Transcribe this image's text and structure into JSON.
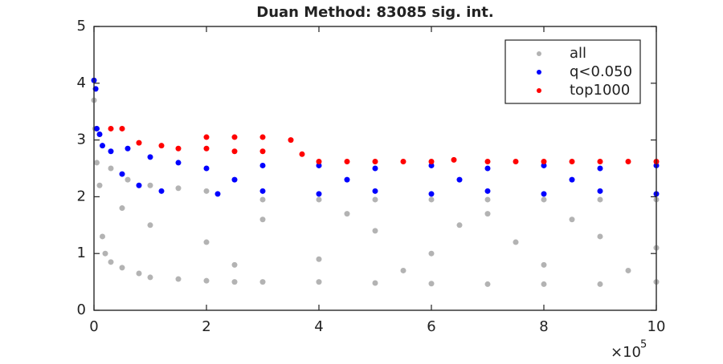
{
  "chart_data": {
    "type": "scatter",
    "title": "Duan Method: 83085 sig. int.",
    "xlim": [
      0,
      1000000
    ],
    "ylim": [
      0,
      5
    ],
    "xticks": [
      0,
      {
        "value": 200000,
        "label": "2"
      },
      {
        "value": 400000,
        "label": "4"
      },
      {
        "value": 600000,
        "label": "6"
      },
      {
        "value": 800000,
        "label": "8"
      },
      {
        "value": 1000000,
        "label": "10"
      }
    ],
    "yticks": [
      0,
      1,
      2,
      3,
      4,
      5
    ],
    "x_scale_label": "×10",
    "x_scale_exponent": "5",
    "legend": "upper right",
    "grid": false,
    "series": [
      {
        "name": "all",
        "color": "#b3b3b3",
        "x": [
          0,
          2000,
          5000,
          10000,
          15000,
          20000,
          30000,
          50000,
          80000,
          100000,
          150000,
          200000,
          250000,
          300000,
          400000,
          500000,
          600000,
          700000,
          800000,
          900000,
          1000000,
          30000,
          60000,
          100000,
          150000,
          200000,
          300000,
          400000,
          500000,
          600000,
          700000,
          800000,
          900000,
          1000000,
          100000,
          200000,
          300000,
          400000,
          500000,
          600000,
          700000,
          800000,
          900000,
          1000000,
          50000,
          250000,
          450000,
          550000,
          650000,
          750000,
          850000,
          950000
        ],
        "values": [
          3.7,
          3.2,
          2.6,
          2.2,
          1.3,
          1.0,
          0.85,
          0.75,
          0.65,
          0.58,
          0.55,
          0.52,
          0.5,
          0.5,
          0.5,
          0.48,
          0.47,
          0.46,
          0.46,
          0.46,
          0.5,
          2.5,
          2.3,
          2.2,
          2.15,
          2.1,
          1.95,
          1.95,
          1.95,
          1.95,
          1.95,
          1.95,
          1.95,
          1.95,
          1.5,
          1.2,
          1.6,
          0.9,
          1.4,
          1.0,
          1.7,
          0.8,
          1.3,
          1.1,
          1.8,
          0.8,
          1.7,
          0.7,
          1.5,
          1.2,
          1.6,
          0.7
        ]
      },
      {
        "name": "q<0.050",
        "color": "#0000ff",
        "x": [
          0,
          3000,
          5000,
          10000,
          15000,
          30000,
          60000,
          100000,
          120000,
          150000,
          200000,
          220000,
          300000,
          300000,
          400000,
          400000,
          500000,
          500000,
          600000,
          600000,
          700000,
          700000,
          800000,
          800000,
          900000,
          900000,
          1000000,
          1000000,
          250000,
          450000,
          650000,
          850000,
          50000,
          80000
        ],
        "values": [
          4.05,
          3.9,
          3.2,
          3.1,
          2.9,
          2.8,
          2.85,
          2.7,
          2.1,
          2.6,
          2.5,
          2.05,
          2.1,
          2.55,
          2.05,
          2.55,
          2.1,
          2.5,
          2.05,
          2.55,
          2.1,
          2.5,
          2.05,
          2.55,
          2.1,
          2.5,
          2.05,
          2.55,
          2.3,
          2.3,
          2.3,
          2.3,
          2.4,
          2.2
        ]
      },
      {
        "name": "top1000",
        "color": "#ff0000",
        "x": [
          50000,
          30000,
          80000,
          120000,
          150000,
          200000,
          250000,
          300000,
          350000,
          370000,
          250000,
          200000,
          300000,
          400000,
          500000,
          600000,
          640000,
          700000,
          800000,
          900000,
          1000000,
          450000,
          550000,
          750000,
          850000,
          950000
        ],
        "values": [
          3.2,
          3.2,
          2.95,
          2.9,
          2.85,
          3.05,
          3.05,
          3.05,
          3.0,
          2.75,
          2.8,
          2.85,
          2.8,
          2.62,
          2.62,
          2.62,
          2.65,
          2.62,
          2.62,
          2.62,
          2.62,
          2.62,
          2.62,
          2.62,
          2.62,
          2.62
        ]
      }
    ]
  }
}
